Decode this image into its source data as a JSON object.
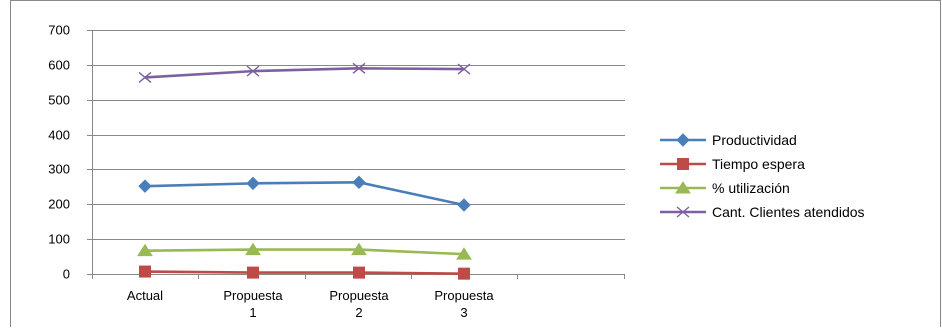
{
  "chart_data": {
    "type": "line",
    "categories": [
      [
        "Actual"
      ],
      [
        "Propuesta",
        "1"
      ],
      [
        "Propuesta",
        "2"
      ],
      [
        "Propuesta",
        "3"
      ]
    ],
    "ylim": [
      0,
      700
    ],
    "yticks": [
      "0",
      "100",
      "200",
      "300",
      "400",
      "500",
      "600",
      "700"
    ],
    "grid": "horizontal",
    "legend_position": "right",
    "series": [
      {
        "name": "Productividad",
        "values": [
          252,
          260,
          263,
          198
        ],
        "color": "#4a7ebb",
        "marker": "diamond"
      },
      {
        "name": "Tiempo espera",
        "values": [
          7,
          4,
          4,
          1
        ],
        "color": "#be4b48",
        "marker": "square"
      },
      {
        "name": "% utilización",
        "values": [
          67,
          70,
          70,
          57
        ],
        "color": "#98b954",
        "marker": "triangle"
      },
      {
        "name": "Cant. Clientes atendidos",
        "values": [
          564,
          582,
          590,
          588
        ],
        "color": "#7d60a0",
        "marker": "x"
      }
    ]
  }
}
